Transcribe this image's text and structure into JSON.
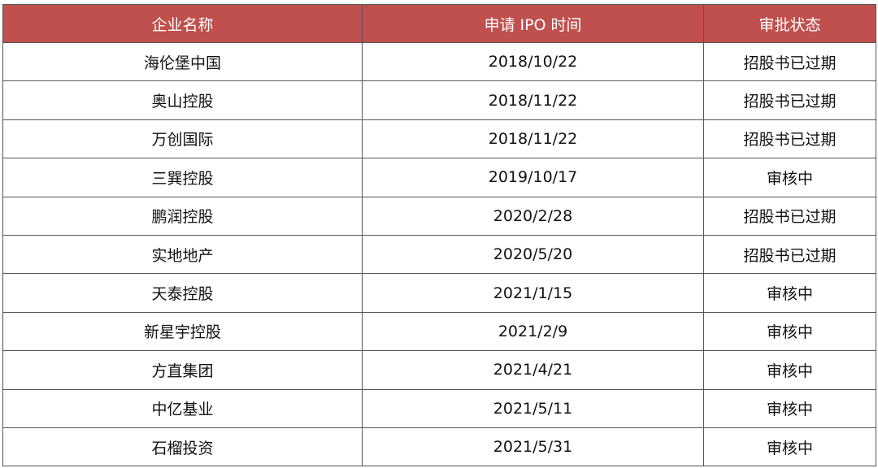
{
  "colors": {
    "header_bg": "#c0504d",
    "header_text": "#ffffff"
  },
  "table": {
    "headers": [
      "企业名称",
      "申请 IPO 时间",
      "审批状态"
    ],
    "rows": [
      [
        "海伦堡中国",
        "2018/10/22",
        "招股书已过期"
      ],
      [
        "奥山控股",
        "2018/11/22",
        "招股书已过期"
      ],
      [
        "万创国际",
        "2018/11/22",
        "招股书已过期"
      ],
      [
        "三巽控股",
        "2019/10/17",
        "审核中"
      ],
      [
        "鹏润控股",
        "2020/2/28",
        "招股书已过期"
      ],
      [
        "实地地产",
        "2020/5/20",
        "招股书已过期"
      ],
      [
        "天泰控股",
        "2021/1/15",
        "审核中"
      ],
      [
        "新星宇控股",
        "2021/2/9",
        "审核中"
      ],
      [
        "方直集团",
        "2021/4/21",
        "审核中"
      ],
      [
        "中亿基业",
        "2021/5/11",
        "审核中"
      ],
      [
        "石榴投资",
        "2021/5/31",
        "审核中"
      ]
    ]
  }
}
